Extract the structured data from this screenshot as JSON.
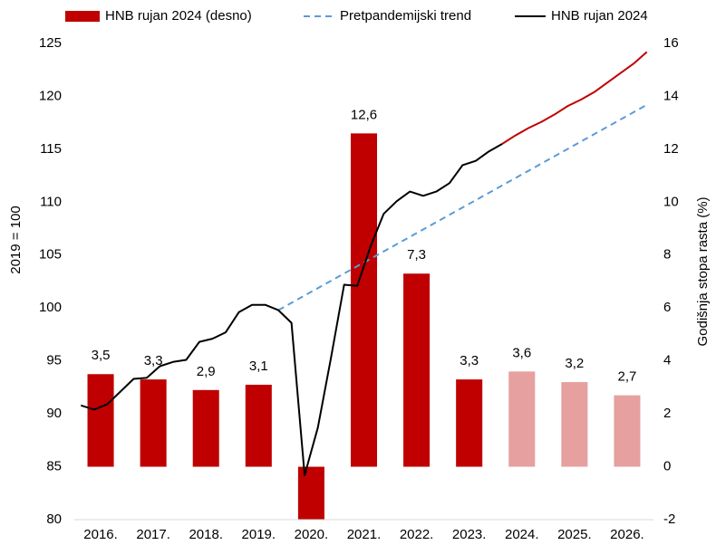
{
  "chart_data": {
    "type": "combo",
    "ylabel": "2019  = 100",
    "y2label": "Godišnja stopa rasta (%)",
    "categories": [
      "2016.",
      "2017.",
      "2018.",
      "2019.",
      "2020.",
      "2021.",
      "2022.",
      "2023.",
      "2024.",
      "2025.",
      "2026."
    ],
    "xlim": [
      2016,
      2027
    ],
    "ylim": [
      80,
      125
    ],
    "yticks": [
      80,
      85,
      90,
      95,
      100,
      105,
      110,
      115,
      120,
      125
    ],
    "y2lim": [
      -2,
      16
    ],
    "y2ticks": [
      -2,
      0,
      2,
      4,
      6,
      8,
      10,
      12,
      14,
      16
    ],
    "legend": "top",
    "series": [
      {
        "name": "HNB rujan 2024 (desno)",
        "type": "bar",
        "axis": "y2",
        "color": "#c00000",
        "colors": [
          "#c00000",
          "#c00000",
          "#c00000",
          "#c00000",
          "#c00000",
          "#c00000",
          "#c00000",
          "#c00000",
          "#e6a0a0",
          "#e6a0a0",
          "#e6a0a0"
        ],
        "values": [
          3.5,
          3.3,
          2.9,
          3.1,
          -2,
          12.6,
          7.3,
          3.3,
          3.6,
          3.2,
          2.7
        ],
        "value_labels": [
          "3,5",
          "3,3",
          "2,9",
          "3,1",
          null,
          "12,6",
          "7,3",
          "3,3",
          "3,6",
          "3,2",
          "2,7"
        ]
      },
      {
        "name": "Pretpandemijski trend",
        "type": "line",
        "dashed": true,
        "color": "#5b9bd5",
        "x": [
          2019.875,
          2026.875
        ],
        "values": [
          99.8,
          119.2
        ]
      },
      {
        "name": "HNB rujan 2024",
        "type": "line",
        "color": "#000000",
        "x": [
          2016.125,
          2016.375,
          2016.625,
          2016.875,
          2017.125,
          2017.375,
          2017.625,
          2017.875,
          2018.125,
          2018.375,
          2018.625,
          2018.875,
          2019.125,
          2019.375,
          2019.625,
          2019.875,
          2020.125,
          2020.375,
          2020.625,
          2020.875,
          2021.125,
          2021.375,
          2021.625,
          2021.875,
          2022.125,
          2022.375,
          2022.625,
          2022.875,
          2023.125,
          2023.375,
          2023.625,
          2023.875,
          2024.125,
          2024.375,
          2024.625,
          2024.875,
          2025.125,
          2025.375,
          2025.625,
          2025.875,
          2026.125,
          2026.375,
          2026.625,
          2026.875
        ],
        "values": [
          90.8,
          90.4,
          90.9,
          92.1,
          93.3,
          93.4,
          94.5,
          94.9,
          95.1,
          96.8,
          97.1,
          97.7,
          99.6,
          100.3,
          100.3,
          99.8,
          98.6,
          84.2,
          88.7,
          95.3,
          102.2,
          102.1,
          105.8,
          108.9,
          110.1,
          111.0,
          110.6,
          111.0,
          111.8,
          113.5,
          113.9,
          114.8,
          115.5,
          null,
          null,
          null,
          null,
          null,
          null,
          null,
          null,
          null,
          null,
          null
        ]
      },
      {
        "type": "line",
        "color": "#c00000",
        "x": [
          2016.125,
          2016.375,
          2016.625,
          2016.875,
          2017.125,
          2017.375,
          2017.625,
          2017.875,
          2018.125,
          2018.375,
          2018.625,
          2018.875,
          2019.125,
          2019.375,
          2019.625,
          2019.875,
          2020.125,
          2020.375,
          2020.625,
          2020.875,
          2021.125,
          2021.375,
          2021.625,
          2021.875,
          2022.125,
          2022.375,
          2022.625,
          2022.875,
          2023.125,
          2023.375,
          2023.625,
          2023.875,
          2024.125,
          2024.375,
          2024.625,
          2024.875,
          2025.125,
          2025.375,
          2025.625,
          2025.875,
          2026.125,
          2026.375,
          2026.625,
          2026.875
        ],
        "values": [
          null,
          null,
          null,
          null,
          null,
          null,
          null,
          null,
          null,
          null,
          null,
          null,
          null,
          null,
          null,
          null,
          null,
          null,
          null,
          null,
          null,
          null,
          null,
          null,
          null,
          null,
          null,
          null,
          null,
          null,
          null,
          null,
          115.5,
          116.3,
          117.0,
          117.6,
          118.3,
          119.1,
          119.7,
          120.4,
          121.3,
          122.2,
          123.1,
          124.2
        ]
      }
    ]
  }
}
